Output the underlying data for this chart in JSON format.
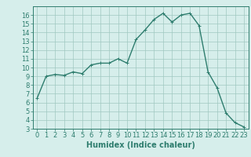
{
  "x": [
    0,
    1,
    2,
    3,
    4,
    5,
    6,
    7,
    8,
    9,
    10,
    11,
    12,
    13,
    14,
    15,
    16,
    17,
    18,
    19,
    20,
    21,
    22,
    23
  ],
  "y": [
    6.5,
    9.0,
    9.2,
    9.1,
    9.5,
    9.3,
    10.3,
    10.5,
    10.5,
    11.0,
    10.5,
    13.2,
    14.3,
    15.5,
    16.2,
    15.2,
    16.0,
    16.2,
    14.8,
    9.5,
    7.7,
    4.8,
    3.7,
    3.2
  ],
  "line_color": "#2e7d6e",
  "marker_color": "#2e7d6e",
  "bg_color": "#d6eeeb",
  "grid_color": "#a0c8c0",
  "xlabel": "Humidex (Indice chaleur)",
  "ylabel": "",
  "xlim": [
    -0.5,
    23.5
  ],
  "ylim": [
    3,
    17
  ],
  "yticks": [
    3,
    4,
    5,
    6,
    7,
    8,
    9,
    10,
    11,
    12,
    13,
    14,
    15,
    16
  ],
  "xticks": [
    0,
    1,
    2,
    3,
    4,
    5,
    6,
    7,
    8,
    9,
    10,
    11,
    12,
    13,
    14,
    15,
    16,
    17,
    18,
    19,
    20,
    21,
    22,
    23
  ],
  "tick_fontsize": 6,
  "xlabel_fontsize": 7,
  "linewidth": 1.0,
  "marker_size": 2.5
}
